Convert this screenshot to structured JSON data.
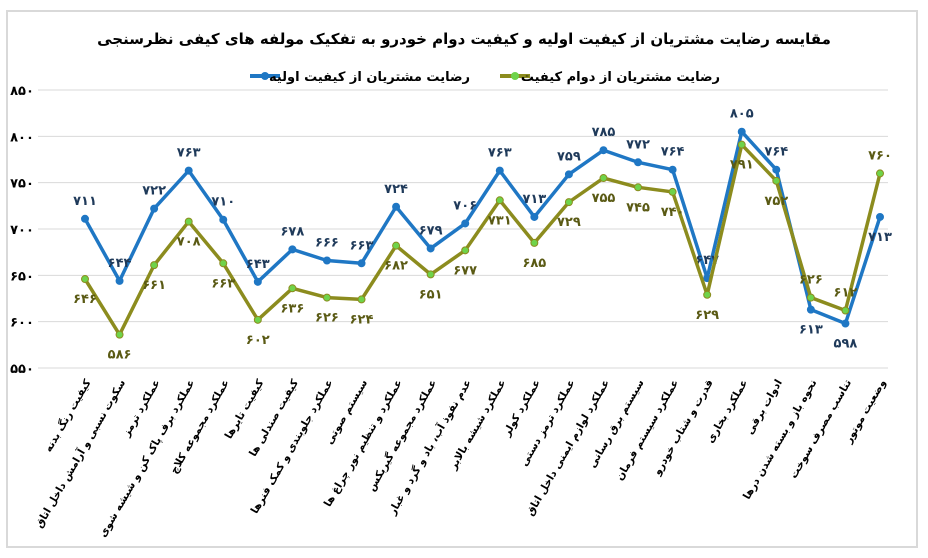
{
  "chart_data": {
    "type": "line",
    "title": "مقایسه رضایت مشتریان از کیفیت اولیه و کیفیت دوام خودرو به تفکیک مولفه های کیفی نظرسنجی",
    "legend_position": "top",
    "grid": true,
    "ylim": [
      550,
      850
    ],
    "yticks": [
      550,
      600,
      650,
      700,
      750,
      800,
      850
    ],
    "categories": [
      "کیفیت رنگ بدنه",
      "سکوت نسبی و آرامش داخل اتاق",
      "عملکرد ترمز",
      "عملکرد برف پاک کن و شیشه شوی",
      "عملکرد مجموعه کلاچ",
      "کیفیت تایرها",
      "کیفیت صندلی ها",
      "عملکرد جلوبندی و کمک فنرها",
      "سیستم صوتی",
      "عملکرد و تنظیم نور چراغ ها",
      "عملکرد مجموعه گیربکس",
      "عدم نفوذ آب، باد و گرد و غبار",
      "عملکرد شیشه بالابر",
      "عملکرد کولر",
      "عملکرد ترمز دستی",
      "عملکرد لوازم ایمنی داخل اتاق",
      "سیستم برق رسانی",
      "عملکرد سیستم فرمان",
      "قدرت و شتاب خودرو",
      "عملکرد بخاری",
      "ادوات برقی",
      "نحوه باز و بسته شدن درها",
      "تناسب مصرف سوخت",
      "وضعیت موتور"
    ],
    "series": [
      {
        "name": "رضایت مشتریان از کیفیت اولیه",
        "color": "#1f77c4",
        "marker_color": "#1f77c4",
        "values": [
          711,
          644,
          722,
          763,
          710,
          643,
          678,
          666,
          663,
          724,
          679,
          706,
          763,
          713,
          759,
          785,
          772,
          764,
          647,
          805,
          764,
          613,
          598,
          713
        ]
      },
      {
        "name": "رضایت مشتریان از دوام کیفیت",
        "color": "#8c8c1e",
        "marker_color": "#6fd34a",
        "values": [
          646,
          586,
          661,
          708,
          663,
          602,
          636,
          626,
          624,
          682,
          651,
          677,
          731,
          685,
          729,
          755,
          745,
          740,
          629,
          791,
          752,
          626,
          612,
          760
        ]
      }
    ]
  }
}
